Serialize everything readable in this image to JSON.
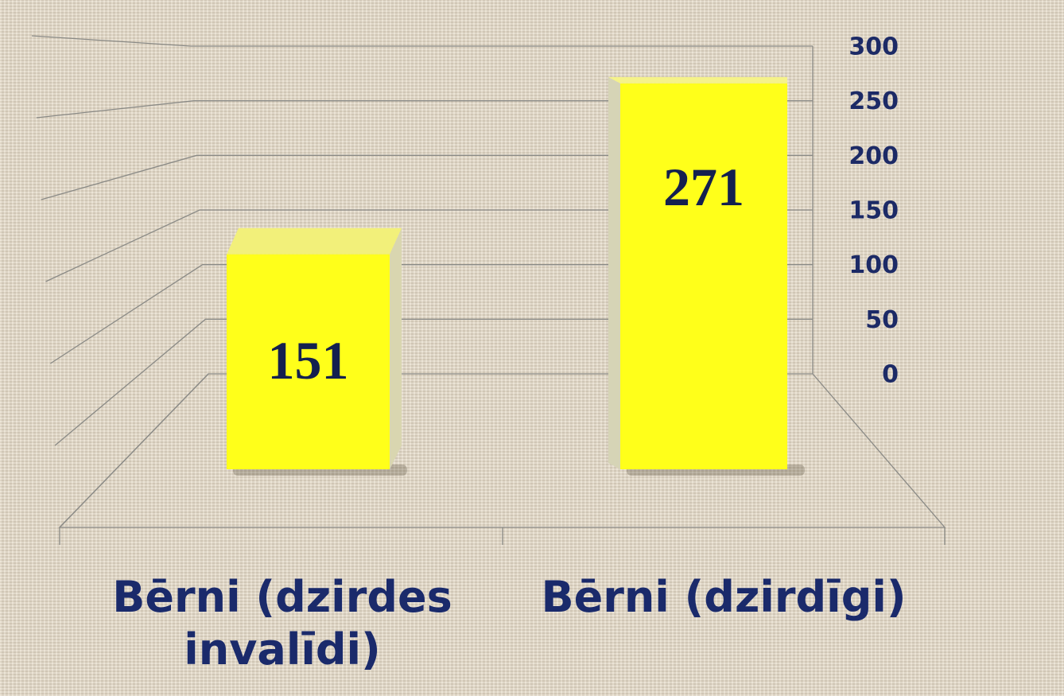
{
  "chart_data": {
    "type": "bar3d",
    "categories": [
      "Bērni (dzirdes invalīdi)",
      "Bērni (dzirdīgi)"
    ],
    "values": [
      151,
      271
    ],
    "color": "#ffff1a",
    "ylim": [
      0,
      300
    ],
    "yticks": [
      0,
      50,
      100,
      150,
      200,
      250,
      300
    ],
    "grid": true
  }
}
